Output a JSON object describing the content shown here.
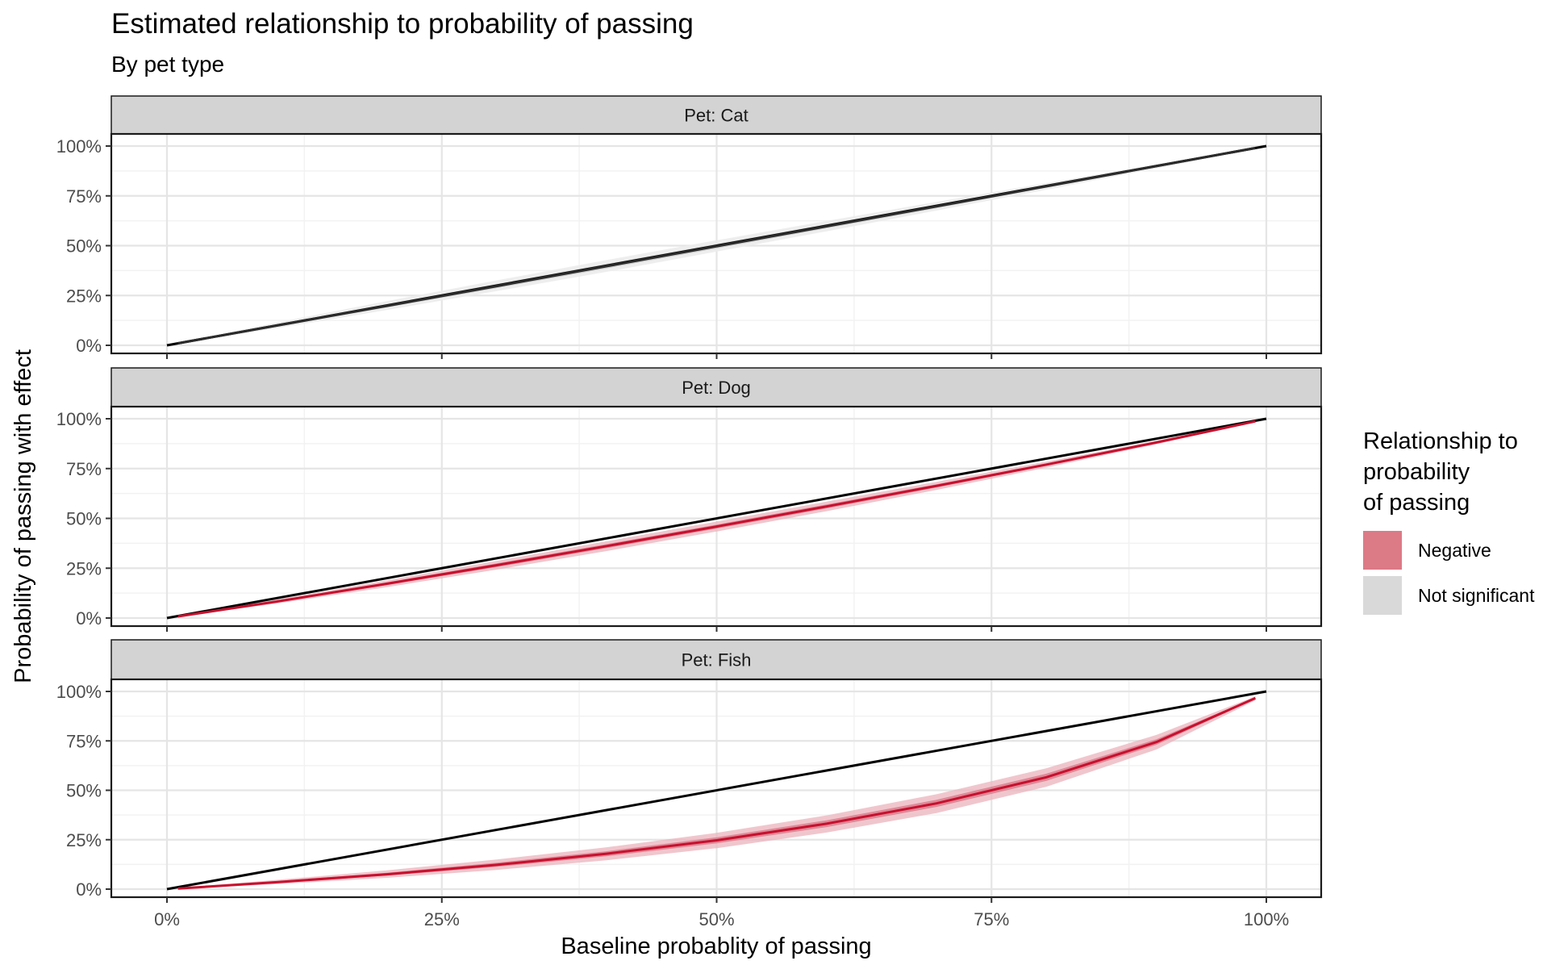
{
  "header": {
    "title": "Estimated relationship to probability of passing",
    "subtitle": "By pet type"
  },
  "legend": {
    "title_lines": [
      "Relationship to",
      "probability",
      "of passing"
    ],
    "items": [
      {
        "label": "Negative",
        "color": "#dc7a86"
      },
      {
        "label": "Not significant",
        "color": "#d9d9d9"
      }
    ]
  },
  "colors": {
    "negative_line": "#c8102e",
    "negative_band_inner": "#d0576b",
    "negative_band_outer": "#ebb3bc",
    "ns_line": "#2b2b2b",
    "ns_band_inner": "#bdbdbd",
    "ns_band_outer": "#ececec",
    "reference_line": "#000000",
    "strip_fill": "#d3d3d3"
  },
  "chart_data": {
    "type": "line",
    "xlabel": "Baseline probablity of passing",
    "ylabel": "Probability of passing with effect",
    "x_ticks": [
      "0%",
      "25%",
      "50%",
      "75%",
      "100%"
    ],
    "y_ticks": [
      "0%",
      "25%",
      "50%",
      "75%",
      "100%"
    ],
    "xlim": [
      0,
      1
    ],
    "ylim": [
      0,
      1
    ],
    "grid": true,
    "legend_position": "right",
    "x": [
      0.01,
      0.1,
      0.2,
      0.3,
      0.4,
      0.5,
      0.6,
      0.7,
      0.8,
      0.9,
      0.99
    ],
    "panels": [
      {
        "strip": "Pet: Cat",
        "relationship": "Not significant",
        "y": [
          0.01,
          0.099,
          0.198,
          0.297,
          0.397,
          0.497,
          0.597,
          0.697,
          0.798,
          0.899,
          0.99
        ],
        "ci50_low": [
          0.009,
          0.094,
          0.19,
          0.287,
          0.386,
          0.486,
          0.587,
          0.688,
          0.791,
          0.894,
          0.989
        ],
        "ci50_high": [
          0.011,
          0.105,
          0.207,
          0.308,
          0.409,
          0.509,
          0.608,
          0.707,
          0.805,
          0.903,
          0.991
        ],
        "ci95_low": [
          0.008,
          0.086,
          0.177,
          0.272,
          0.369,
          0.47,
          0.572,
          0.676,
          0.781,
          0.888,
          0.988
        ],
        "ci95_high": [
          0.012,
          0.114,
          0.222,
          0.326,
          0.428,
          0.527,
          0.624,
          0.72,
          0.814,
          0.908,
          0.992
        ]
      },
      {
        "strip": "Pet: Dog",
        "relationship": "Negative",
        "y": [
          0.008,
          0.083,
          0.172,
          0.265,
          0.361,
          0.459,
          0.56,
          0.663,
          0.77,
          0.881,
          0.987
        ],
        "ci50_low": [
          0.008,
          0.079,
          0.165,
          0.256,
          0.351,
          0.449,
          0.55,
          0.655,
          0.764,
          0.877,
          0.986
        ],
        "ci50_high": [
          0.009,
          0.087,
          0.179,
          0.274,
          0.371,
          0.469,
          0.57,
          0.671,
          0.776,
          0.885,
          0.988
        ],
        "ci95_low": [
          0.007,
          0.073,
          0.155,
          0.243,
          0.336,
          0.434,
          0.536,
          0.643,
          0.755,
          0.872,
          0.985
        ],
        "ci95_high": [
          0.01,
          0.093,
          0.189,
          0.287,
          0.385,
          0.484,
          0.584,
          0.683,
          0.785,
          0.89,
          0.989
        ]
      },
      {
        "strip": "Pet: Fish",
        "relationship": "Negative",
        "y": [
          0.003,
          0.035,
          0.075,
          0.123,
          0.179,
          0.247,
          0.331,
          0.434,
          0.566,
          0.744,
          0.966
        ],
        "ci50_low": [
          0.003,
          0.031,
          0.068,
          0.113,
          0.166,
          0.232,
          0.314,
          0.416,
          0.548,
          0.73,
          0.962
        ],
        "ci50_high": [
          0.004,
          0.04,
          0.083,
          0.134,
          0.192,
          0.262,
          0.348,
          0.452,
          0.584,
          0.758,
          0.97
        ],
        "ci95_low": [
          0.002,
          0.025,
          0.057,
          0.097,
          0.146,
          0.207,
          0.286,
          0.385,
          0.518,
          0.706,
          0.955
        ],
        "ci95_high": [
          0.005,
          0.047,
          0.095,
          0.15,
          0.212,
          0.285,
          0.373,
          0.48,
          0.612,
          0.78,
          0.975
        ]
      }
    ]
  }
}
